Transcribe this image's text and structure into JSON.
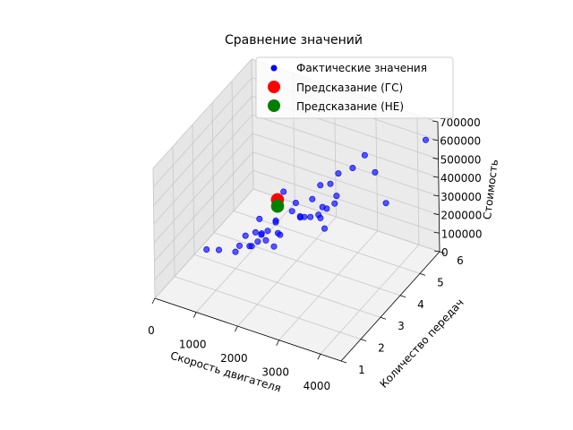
{
  "chart_data": {
    "type": "scatter",
    "title": "Сравнение значений",
    "xlabel": "Скорость двигателя",
    "ylabel": "Количество передач",
    "zlabel": "Стоимость",
    "xlim": [
      0,
      4500
    ],
    "ylim": [
      1,
      6
    ],
    "zlim": [
      0,
      700000
    ],
    "x_ticks": [
      "0",
      "1000",
      "2000",
      "3000",
      "4000"
    ],
    "y_ticks": [
      "1",
      "2",
      "3",
      "4",
      "5",
      "6"
    ],
    "z_ticks": [
      "0",
      "100000",
      "200000",
      "300000",
      "400000",
      "500000",
      "600000",
      "700000"
    ],
    "grid": true,
    "legend_position": "upper right",
    "series": [
      {
        "name": "Фактические значения",
        "color": "#0000ff",
        "marker": "circle",
        "points": [
          [
            3200,
            5.0,
            540000
          ],
          [
            4200,
            6.0,
            580000
          ],
          [
            3000,
            4.8,
            480000
          ],
          [
            2700,
            4.7,
            440000
          ],
          [
            3300,
            5.3,
            420000
          ],
          [
            3700,
            5.0,
            320000
          ],
          [
            2500,
            4.2,
            420000
          ],
          [
            2600,
            4.5,
            400000
          ],
          [
            1800,
            3.8,
            380000
          ],
          [
            2600,
            4.8,
            300000
          ],
          [
            2300,
            4.2,
            330000
          ],
          [
            2600,
            4.3,
            290000
          ],
          [
            2400,
            4.5,
            260000
          ],
          [
            2200,
            4.0,
            250000
          ],
          [
            2600,
            4.7,
            270000
          ],
          [
            2000,
            3.8,
            290000
          ],
          [
            1700,
            3.6,
            240000
          ],
          [
            2300,
            4.5,
            210000
          ],
          [
            2200,
            4.3,
            215000
          ],
          [
            2000,
            4.2,
            215000
          ],
          [
            1900,
            4.2,
            280000
          ],
          [
            2100,
            4.0,
            240000
          ],
          [
            1600,
            3.8,
            200000
          ],
          [
            1400,
            3.4,
            250000
          ],
          [
            1500,
            3.6,
            170000
          ],
          [
            1300,
            3.4,
            170000
          ],
          [
            1200,
            3.1,
            180000
          ],
          [
            1400,
            3.5,
            160000
          ],
          [
            1500,
            3.5,
            130000
          ],
          [
            1300,
            3.2,
            120000
          ],
          [
            1400,
            3.3,
            140000
          ],
          [
            1200,
            3.3,
            100000
          ],
          [
            1600,
            3.9,
            130000
          ],
          [
            1700,
            3.8,
            140000
          ],
          [
            1100,
            3.0,
            130000
          ],
          [
            1000,
            3.0,
            90000
          ],
          [
            2200,
            4.8,
            150000
          ],
          [
            1500,
            3.9,
            50000
          ],
          [
            2200,
            5.0,
            70000
          ],
          [
            600,
            3.0,
            70000
          ],
          [
            1100,
            4.1,
            60000
          ],
          [
            300,
            3.0,
            50000
          ]
        ]
      },
      {
        "name": "Предсказание (ГС)",
        "color": "#ff0000",
        "marker": "circle",
        "points": [
          [
            1600,
            3.9,
            310000
          ]
        ]
      },
      {
        "name": "Предсказание (НЕ)",
        "color": "#008000",
        "marker": "circle",
        "points": [
          [
            1600,
            3.9,
            275000
          ]
        ]
      }
    ]
  }
}
